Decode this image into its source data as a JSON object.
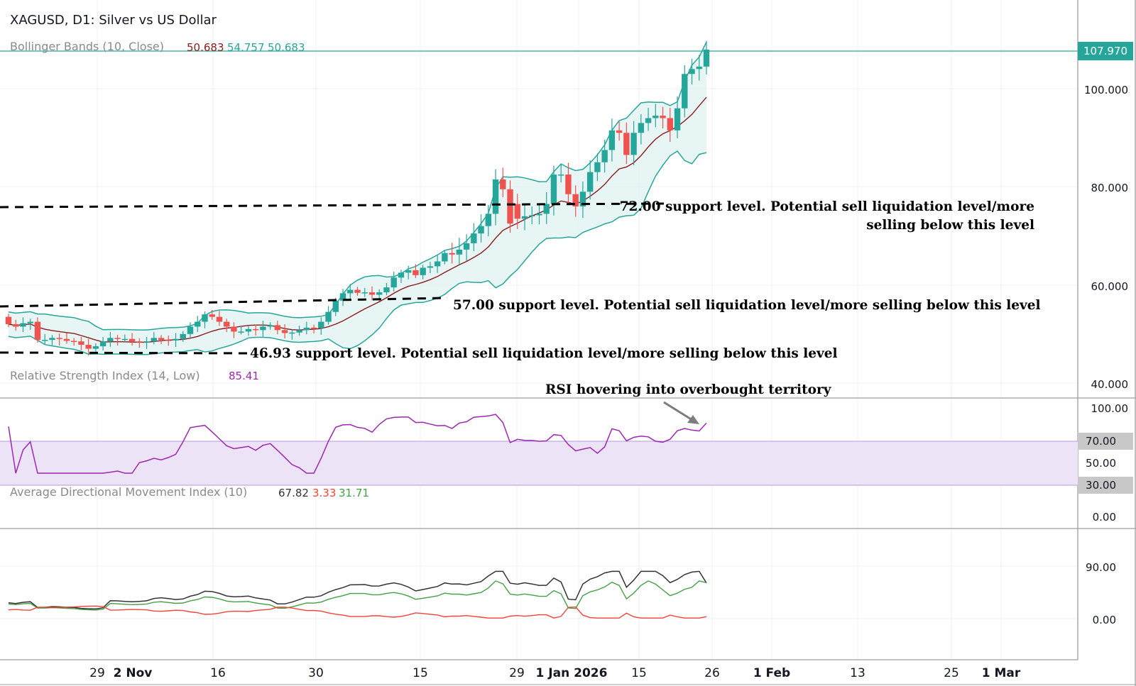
{
  "header": {
    "title": "XAGUSD, D1: Silver vs US Dollar",
    "bb_legend": "Bollinger Bands (10, Close)",
    "bb_values": [
      "50.683",
      "54.757",
      "50.683"
    ],
    "rsi_legend": "Relative Strength Index (14, Low)",
    "rsi_value": "85.41",
    "adx_legend": "Average Directional Movement Index (10)",
    "adx_values": [
      "67.82",
      "3.33",
      "31.71"
    ]
  },
  "colors": {
    "up": "#26a69a",
    "down": "#ef5350",
    "bb_band": "#26a69a",
    "bb_basis": "#8b1a1a",
    "rsi_line": "#9c27b0",
    "rsi_zone": "#ede3f7",
    "adx_line": "#333333",
    "di_plus": "#43a047",
    "di_minus": "#f44336",
    "price_label": "#26a69a"
  },
  "price_label": "107.970",
  "annotations": {
    "s72_line1": "72.00 support level. Potential sell liquidation level/more",
    "s72_line2": "selling below this level",
    "s57": "57.00 support level. Potential sell liquidation level/more selling below this level",
    "s4693": "46.93 support level. Potential sell liquidation level/more selling below this level",
    "rsi_note": "RSI hovering into overbought territory"
  },
  "chart_data": {
    "type": "line",
    "symbol": "XAGUSD",
    "timeframe": "D1",
    "price_axis": {
      "ticks": [
        "100.000",
        "80.000",
        "60.000",
        "40.000"
      ],
      "range": [
        40,
        110
      ]
    },
    "rsi_axis": {
      "ticks": [
        "100.00",
        "70.00",
        "50.00",
        "30.00",
        "0.00"
      ]
    },
    "adx_axis": {
      "ticks": [
        "90.00",
        "0.00"
      ]
    },
    "time_axis": {
      "ticks": [
        "29",
        "2 Nov",
        "16",
        "30",
        "15",
        "29",
        "1 Jan 2026",
        "15",
        "26",
        "1 Feb",
        "13",
        "25",
        "1 Mar"
      ],
      "bold": [
        "2 Nov",
        "1 Jan 2026",
        "1 Feb",
        "1 Mar"
      ]
    },
    "support_levels": [
      72.0,
      57.0,
      46.93
    ],
    "last_price": 107.97,
    "candles": {
      "open": [
        53.5,
        52,
        51.5,
        52.2,
        52.5,
        48.8,
        48.8,
        49.2,
        49,
        48.6,
        48.5,
        47.8,
        47,
        47.5,
        48.5,
        49.2,
        49,
        49,
        48.5,
        48.3,
        48.5,
        49.2,
        48.8,
        48.7,
        49,
        50,
        51.5,
        52.5,
        54,
        53.5,
        52.5,
        51.5,
        50.5,
        50.5,
        51,
        50.8,
        51.5,
        51.8,
        50.8,
        50.2,
        50.3,
        50.8,
        51.3,
        51.2,
        52.5,
        54.5,
        56.8,
        58.3,
        59,
        58.4,
        58.5,
        58,
        58.5,
        59.5,
        61.5,
        62.5,
        63,
        62,
        63.5,
        63.8,
        64.8,
        66.5,
        66.2,
        67.2,
        68.5,
        70.5,
        72,
        74.5,
        81.5,
        79.5,
        76.5,
        73.5,
        74,
        74.2,
        74.5,
        76.5,
        82.5,
        82.5,
        78.5,
        76,
        79,
        83,
        85,
        87.5,
        91.5,
        91,
        86.5,
        91,
        93,
        94,
        94.5,
        94,
        91.5,
        96,
        103,
        104,
        104.5
      ],
      "close": [
        52,
        51.5,
        52.2,
        52.5,
        48.8,
        48.8,
        49.2,
        49,
        48.6,
        48.5,
        47.8,
        47,
        47.5,
        48.5,
        49.2,
        49,
        49,
        48.5,
        48.3,
        48.5,
        49.2,
        48.8,
        48.7,
        49,
        50,
        51.5,
        52.5,
        54,
        53.5,
        52.5,
        51.5,
        50.5,
        50.5,
        51,
        50.8,
        51.5,
        51.8,
        50.8,
        50.2,
        50.3,
        50.8,
        51.3,
        51.2,
        52.5,
        54.5,
        56.8,
        58.3,
        59,
        58.4,
        58.5,
        58,
        58.5,
        59.5,
        61.5,
        62.5,
        63,
        62,
        63.5,
        63.8,
        64.8,
        66.5,
        66.2,
        67.2,
        68.5,
        70.5,
        72,
        74.5,
        81.5,
        79.5,
        72.5,
        73.5,
        74,
        74.2,
        74.5,
        76.5,
        82.5,
        82.5,
        78.5,
        76,
        79,
        83,
        85,
        87.5,
        91.5,
        91,
        86.5,
        91,
        93,
        94,
        94.5,
        94,
        91.5,
        96,
        103,
        104,
        104.5,
        107.97
      ]
    },
    "bollinger": {
      "upper_start": 54.0,
      "upper_end": 99.0,
      "basis_start": 51.0,
      "basis_end": 97.0,
      "lower_start": 48.0,
      "lower_end": 84.5
    },
    "rsi_range": [
      0,
      100
    ],
    "rsi_zone": [
      30,
      70
    ],
    "adx_range": [
      0,
      100
    ]
  }
}
